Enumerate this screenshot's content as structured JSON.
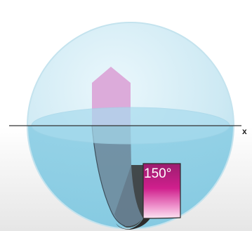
{
  "diagram": {
    "x_axis_label": "x",
    "angle_label": "150°"
  },
  "colors": {
    "background_top": "#ffffff",
    "background_bottom": "#e9e9e9",
    "sphere": "#cfe9f3",
    "sphere_lower": "#8fd0e6",
    "equator_disk": "#a9dcee",
    "ribbon_front": "#d8a8d6",
    "ribbon_back": "#9a3a8c",
    "ribbon_magenta": "#c21d85",
    "ribbon_shadow": "#2c2c2c",
    "axis": "#333333"
  }
}
